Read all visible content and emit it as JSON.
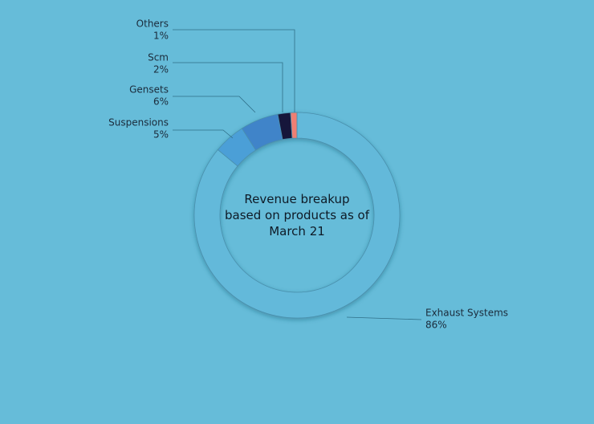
{
  "chart_data": {
    "type": "pie",
    "donut": true,
    "title": "Revenue breakup based on products as of March 21",
    "categories": [
      "Exhaust Systems",
      "Suspensions",
      "Gensets",
      "Scm",
      "Others"
    ],
    "values": [
      86,
      5,
      6,
      2,
      1
    ],
    "value_labels": [
      "86%",
      "5%",
      "6%",
      "2%",
      "1%"
    ],
    "colors": [
      "#63b9da",
      "#4b9fd7",
      "#3f84c9",
      "#15163a",
      "#ef7f73"
    ]
  }
}
